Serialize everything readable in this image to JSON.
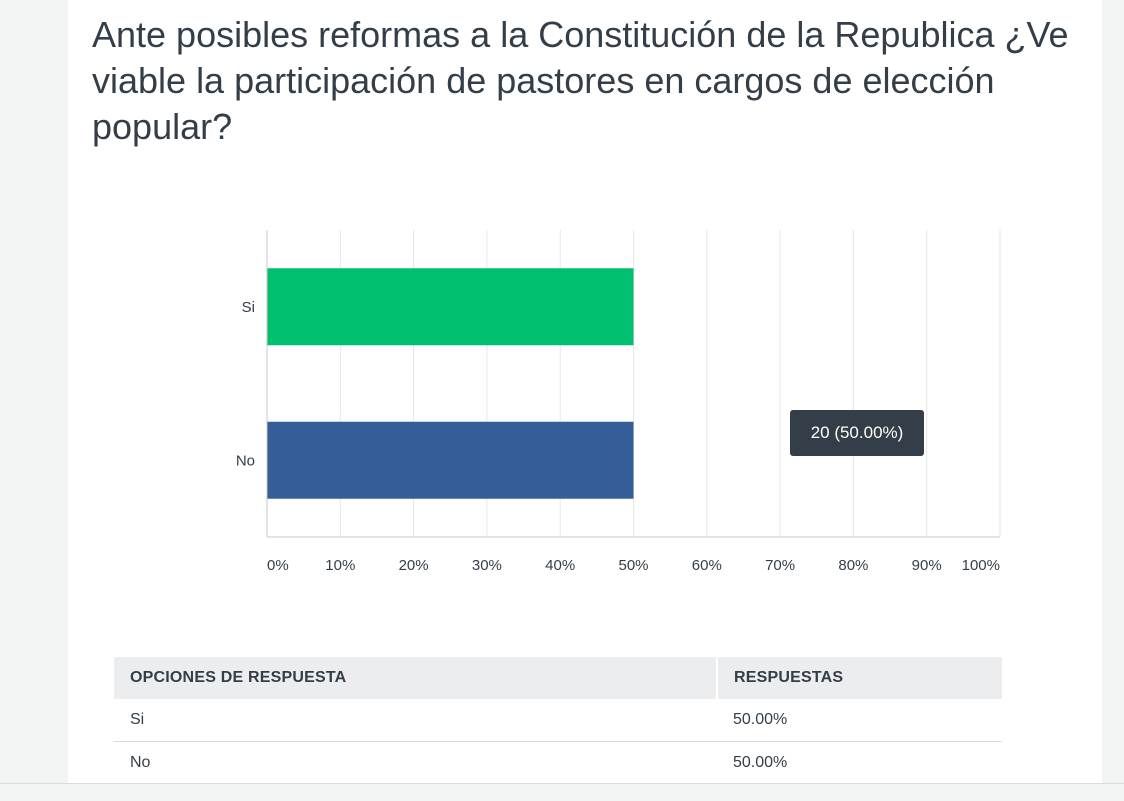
{
  "question": {
    "title": "Ante posibles reformas a la Constitución de la Republica ¿Ve viable la participación de pastores en cargos de elección popular?"
  },
  "chart_data": {
    "type": "bar",
    "orientation": "horizontal",
    "categories": [
      "Si",
      "No"
    ],
    "values": [
      50,
      50
    ],
    "value_unit": "%",
    "xlim": [
      0,
      100
    ],
    "x_ticks": [
      "0%",
      "10%",
      "20%",
      "30%",
      "40%",
      "50%",
      "60%",
      "70%",
      "80%",
      "90%",
      "100%"
    ],
    "grid": true,
    "colors": [
      "#00bf6f",
      "#355e99"
    ]
  },
  "tooltip": {
    "text": "20 (50.00%)"
  },
  "table": {
    "headers": [
      "OPCIONES DE RESPUESTA",
      "RESPUESTAS"
    ],
    "rows": [
      {
        "option": "Si",
        "response": "50.00%"
      },
      {
        "option": "No",
        "response": "50.00%"
      }
    ]
  }
}
